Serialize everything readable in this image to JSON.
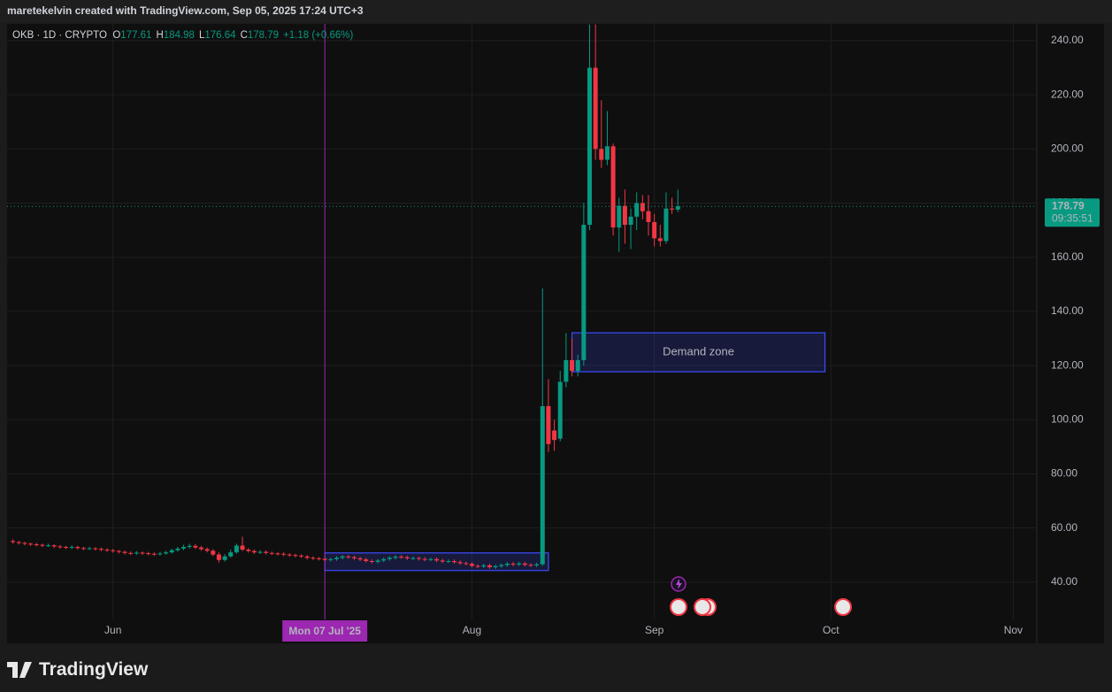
{
  "header": "maretekelvin created with TradingView.com, Sep 05, 2025 17:24 UTC+3",
  "brand": "TradingView",
  "chart_data": {
    "type": "candlestick",
    "symbol": "OKB · 1D · CRYPTO",
    "legend_labels": [
      "O",
      "H",
      "L",
      "C"
    ],
    "change_label": "+1.18 (+0.66%)",
    "countdown": "09:35:51",
    "up_color": "#089981",
    "down_color": "#f23645",
    "grid": true,
    "xlim": [
      "2025-05-14",
      "2025-11-05"
    ],
    "xticks": [
      {
        "value": "2025-06-01",
        "label": "Jun"
      },
      {
        "value": "2025-08-01",
        "label": "Aug"
      },
      {
        "value": "2025-09-01",
        "label": "Sep"
      },
      {
        "value": "2025-10-01",
        "label": "Oct"
      },
      {
        "value": "2025-11-01",
        "label": "Nov"
      }
    ],
    "ylim": [
      17.4,
      246.2
    ],
    "yticks": [
      {
        "value": 40,
        "label": "40.00"
      },
      {
        "value": 60,
        "label": "60.00"
      },
      {
        "value": 80,
        "label": "80.00"
      },
      {
        "value": 100,
        "label": "100.00"
      },
      {
        "value": 120,
        "label": "120.00"
      },
      {
        "value": 140,
        "label": "140.00"
      },
      {
        "value": 160,
        "label": "160.00"
      },
      {
        "value": 180,
        "label": "180.00"
      },
      {
        "value": 200,
        "label": "200.00"
      },
      {
        "value": 220,
        "label": "220.00"
      },
      {
        "value": 240,
        "label": "240.00"
      }
    ],
    "crosshair": {
      "x": "2025-07-07",
      "label": "Mon 07 Jul '25",
      "color": "#9c27b0"
    },
    "zones": [
      {
        "x": [
          "2025-08-18",
          "2025-09-30"
        ],
        "y": [
          117.7,
          132.1
        ],
        "label": "Demand zone",
        "color": "#3d4bff"
      },
      {
        "x": [
          "2025-07-07",
          "2025-08-14"
        ],
        "y": [
          44.3,
          50.8
        ],
        "color": "#3d4bff"
      }
    ],
    "x": [
      "2025-05-15",
      "2025-05-16",
      "2025-05-17",
      "2025-05-18",
      "2025-05-19",
      "2025-05-20",
      "2025-05-21",
      "2025-05-22",
      "2025-05-23",
      "2025-05-24",
      "2025-05-25",
      "2025-05-26",
      "2025-05-27",
      "2025-05-28",
      "2025-05-29",
      "2025-05-30",
      "2025-05-31",
      "2025-06-01",
      "2025-06-02",
      "2025-06-03",
      "2025-06-04",
      "2025-06-05",
      "2025-06-06",
      "2025-06-07",
      "2025-06-08",
      "2025-06-09",
      "2025-06-10",
      "2025-06-11",
      "2025-06-12",
      "2025-06-13",
      "2025-06-14",
      "2025-06-15",
      "2025-06-16",
      "2025-06-17",
      "2025-06-18",
      "2025-06-19",
      "2025-06-20",
      "2025-06-21",
      "2025-06-22",
      "2025-06-23",
      "2025-06-24",
      "2025-06-25",
      "2025-06-26",
      "2025-06-27",
      "2025-06-28",
      "2025-06-29",
      "2025-06-30",
      "2025-07-01",
      "2025-07-02",
      "2025-07-03",
      "2025-07-04",
      "2025-07-05",
      "2025-07-06",
      "2025-07-07",
      "2025-07-08",
      "2025-07-09",
      "2025-07-10",
      "2025-07-11",
      "2025-07-12",
      "2025-07-13",
      "2025-07-14",
      "2025-07-15",
      "2025-07-16",
      "2025-07-17",
      "2025-07-18",
      "2025-07-19",
      "2025-07-20",
      "2025-07-21",
      "2025-07-22",
      "2025-07-23",
      "2025-07-24",
      "2025-07-25",
      "2025-07-26",
      "2025-07-27",
      "2025-07-28",
      "2025-07-29",
      "2025-07-30",
      "2025-07-31",
      "2025-08-01",
      "2025-08-02",
      "2025-08-03",
      "2025-08-04",
      "2025-08-05",
      "2025-08-06",
      "2025-08-07",
      "2025-08-08",
      "2025-08-09",
      "2025-08-10",
      "2025-08-11",
      "2025-08-12",
      "2025-08-13",
      "2025-08-14",
      "2025-08-15",
      "2025-08-16",
      "2025-08-17",
      "2025-08-18",
      "2025-08-19",
      "2025-08-20",
      "2025-08-21",
      "2025-08-22",
      "2025-08-23",
      "2025-08-24",
      "2025-08-25",
      "2025-08-26",
      "2025-08-27",
      "2025-08-28",
      "2025-08-29",
      "2025-08-30",
      "2025-08-31",
      "2025-09-01",
      "2025-09-02",
      "2025-09-03",
      "2025-09-04",
      "2025-09-05"
    ],
    "ohlc": [
      [
        55.2,
        55.8,
        54.2,
        54.8
      ],
      [
        54.8,
        55.2,
        53.9,
        54.5
      ],
      [
        54.5,
        54.9,
        53.6,
        54.2
      ],
      [
        54.2,
        54.6,
        53.4,
        54.0
      ],
      [
        54.0,
        54.5,
        53.2,
        53.8
      ],
      [
        53.8,
        54.2,
        52.9,
        53.5
      ],
      [
        53.5,
        54.2,
        53.0,
        53.6
      ],
      [
        53.6,
        54.0,
        52.6,
        53.2
      ],
      [
        53.2,
        53.7,
        52.4,
        53.0
      ],
      [
        53.0,
        53.4,
        52.2,
        52.8
      ],
      [
        52.8,
        53.6,
        52.3,
        53.0
      ],
      [
        53.0,
        53.4,
        52.0,
        52.6
      ],
      [
        52.6,
        53.0,
        51.8,
        52.4
      ],
      [
        52.4,
        53.1,
        51.9,
        52.5
      ],
      [
        52.5,
        52.9,
        51.7,
        52.3
      ],
      [
        52.3,
        52.8,
        51.4,
        52.0
      ],
      [
        52.0,
        52.5,
        51.2,
        51.8
      ],
      [
        51.8,
        52.2,
        50.9,
        51.5
      ],
      [
        51.5,
        51.9,
        50.6,
        51.2
      ],
      [
        51.2,
        51.7,
        50.2,
        50.8
      ],
      [
        50.8,
        51.3,
        50.0,
        50.6
      ],
      [
        50.6,
        51.5,
        50.1,
        50.9
      ],
      [
        50.9,
        51.3,
        50.1,
        50.7
      ],
      [
        50.7,
        51.2,
        49.9,
        50.5
      ],
      [
        50.5,
        51.0,
        49.7,
        50.3
      ],
      [
        50.3,
        51.2,
        49.8,
        50.6
      ],
      [
        50.6,
        51.6,
        50.1,
        51.0
      ],
      [
        51.0,
        52.4,
        50.5,
        51.8
      ],
      [
        51.8,
        53.0,
        51.2,
        52.4
      ],
      [
        52.4,
        53.8,
        51.8,
        53.0
      ],
      [
        53.0,
        54.2,
        52.4,
        53.4
      ],
      [
        53.4,
        54.0,
        52.2,
        52.8
      ],
      [
        52.8,
        53.4,
        51.6,
        52.2
      ],
      [
        52.2,
        52.8,
        51.0,
        51.6
      ],
      [
        51.6,
        52.2,
        49.6,
        50.2
      ],
      [
        50.2,
        51.0,
        47.2,
        48.2
      ],
      [
        48.2,
        50.4,
        47.6,
        49.5
      ],
      [
        49.5,
        52.0,
        49.0,
        51.0
      ],
      [
        51.0,
        54.2,
        50.5,
        53.5
      ],
      [
        53.5,
        56.8,
        51.5,
        52.0
      ],
      [
        52.0,
        52.6,
        50.9,
        51.5
      ],
      [
        51.5,
        52.1,
        50.4,
        51.0
      ],
      [
        51.0,
        51.8,
        50.4,
        51.2
      ],
      [
        51.2,
        51.7,
        50.2,
        50.8
      ],
      [
        50.8,
        51.3,
        50.0,
        50.6
      ],
      [
        50.6,
        51.1,
        49.9,
        50.5
      ],
      [
        50.5,
        51.0,
        49.6,
        50.2
      ],
      [
        50.2,
        50.7,
        49.4,
        50.0
      ],
      [
        50.0,
        50.5,
        49.2,
        49.8
      ],
      [
        49.8,
        50.3,
        48.9,
        49.5
      ],
      [
        49.5,
        50.0,
        48.4,
        49.0
      ],
      [
        49.0,
        49.5,
        48.2,
        48.8
      ],
      [
        48.8,
        49.3,
        48.0,
        48.6
      ],
      [
        48.6,
        49.1,
        47.6,
        48.2
      ],
      [
        48.2,
        49.0,
        47.6,
        48.5
      ],
      [
        48.5,
        49.6,
        47.9,
        49.0
      ],
      [
        49.0,
        50.1,
        48.4,
        49.5
      ],
      [
        49.5,
        50.0,
        48.6,
        49.2
      ],
      [
        49.2,
        49.8,
        48.2,
        48.8
      ],
      [
        48.8,
        49.4,
        47.8,
        48.4
      ],
      [
        48.4,
        49.0,
        47.2,
        47.8
      ],
      [
        47.8,
        48.4,
        46.9,
        47.5
      ],
      [
        47.5,
        48.6,
        46.9,
        48.0
      ],
      [
        48.0,
        49.1,
        47.4,
        48.5
      ],
      [
        48.5,
        49.6,
        47.9,
        49.0
      ],
      [
        49.0,
        50.0,
        48.4,
        49.4
      ],
      [
        49.4,
        50.0,
        48.6,
        49.2
      ],
      [
        49.2,
        49.8,
        48.2,
        48.8
      ],
      [
        48.8,
        49.5,
        48.2,
        48.9
      ],
      [
        48.9,
        49.5,
        48.0,
        48.6
      ],
      [
        48.6,
        49.2,
        47.7,
        48.3
      ],
      [
        48.3,
        49.1,
        47.7,
        48.5
      ],
      [
        48.5,
        49.1,
        47.4,
        48.0
      ],
      [
        48.0,
        48.6,
        47.0,
        47.6
      ],
      [
        47.6,
        48.4,
        47.0,
        47.8
      ],
      [
        47.8,
        48.4,
        46.8,
        47.4
      ],
      [
        47.4,
        48.0,
        46.4,
        47.0
      ],
      [
        47.0,
        47.6,
        46.2,
        46.8
      ],
      [
        46.8,
        47.4,
        45.4,
        46.0
      ],
      [
        46.0,
        46.6,
        45.2,
        45.8
      ],
      [
        45.8,
        46.8,
        45.2,
        46.2
      ],
      [
        46.2,
        46.8,
        44.9,
        45.5
      ],
      [
        45.5,
        46.5,
        44.9,
        45.9
      ],
      [
        45.9,
        46.9,
        45.3,
        46.3
      ],
      [
        46.3,
        47.4,
        45.7,
        46.8
      ],
      [
        46.8,
        47.4,
        45.9,
        46.5
      ],
      [
        46.5,
        47.5,
        45.9,
        46.9
      ],
      [
        46.9,
        47.5,
        45.8,
        46.4
      ],
      [
        46.4,
        47.0,
        45.6,
        46.2
      ],
      [
        46.2,
        47.2,
        45.6,
        46.6
      ],
      [
        46.6,
        148.5,
        46.0,
        105.0
      ],
      [
        105.0,
        115.0,
        88.0,
        91.0
      ],
      [
        96.0,
        100.0,
        88.5,
        92.5
      ],
      [
        93.0,
        118.0,
        92.0,
        114.0
      ],
      [
        114.0,
        132.0,
        112.0,
        122.0
      ],
      [
        122.0,
        130.0,
        116.0,
        118.0
      ],
      [
        118.0,
        124.0,
        116.0,
        122.0
      ],
      [
        122.0,
        180.0,
        120.0,
        172.0
      ],
      [
        172.0,
        246.0,
        170.0,
        230.0
      ],
      [
        230.0,
        246.0,
        196.0,
        200.0
      ],
      [
        200.0,
        218.0,
        193.0,
        196.0
      ],
      [
        196.0,
        214.0,
        194.0,
        201.0
      ],
      [
        201.0,
        202.0,
        168.0,
        171.0
      ],
      [
        171.0,
        182.0,
        162.0,
        179.0
      ],
      [
        179.0,
        185.0,
        165.0,
        172.0
      ],
      [
        172.0,
        178.0,
        163.0,
        175.0
      ],
      [
        175.0,
        184.0,
        170.0,
        180.0
      ],
      [
        180.0,
        183.0,
        174.0,
        177.0
      ],
      [
        177.0,
        183.0,
        168.0,
        173.0
      ],
      [
        173.0,
        176.0,
        164.0,
        167.0
      ],
      [
        167.0,
        172.0,
        164.0,
        166.0
      ],
      [
        166.0,
        184.0,
        165.0,
        178.0
      ],
      [
        178.0,
        182.0,
        176.0,
        177.61
      ],
      [
        177.61,
        184.98,
        176.64,
        178.79
      ]
    ]
  }
}
